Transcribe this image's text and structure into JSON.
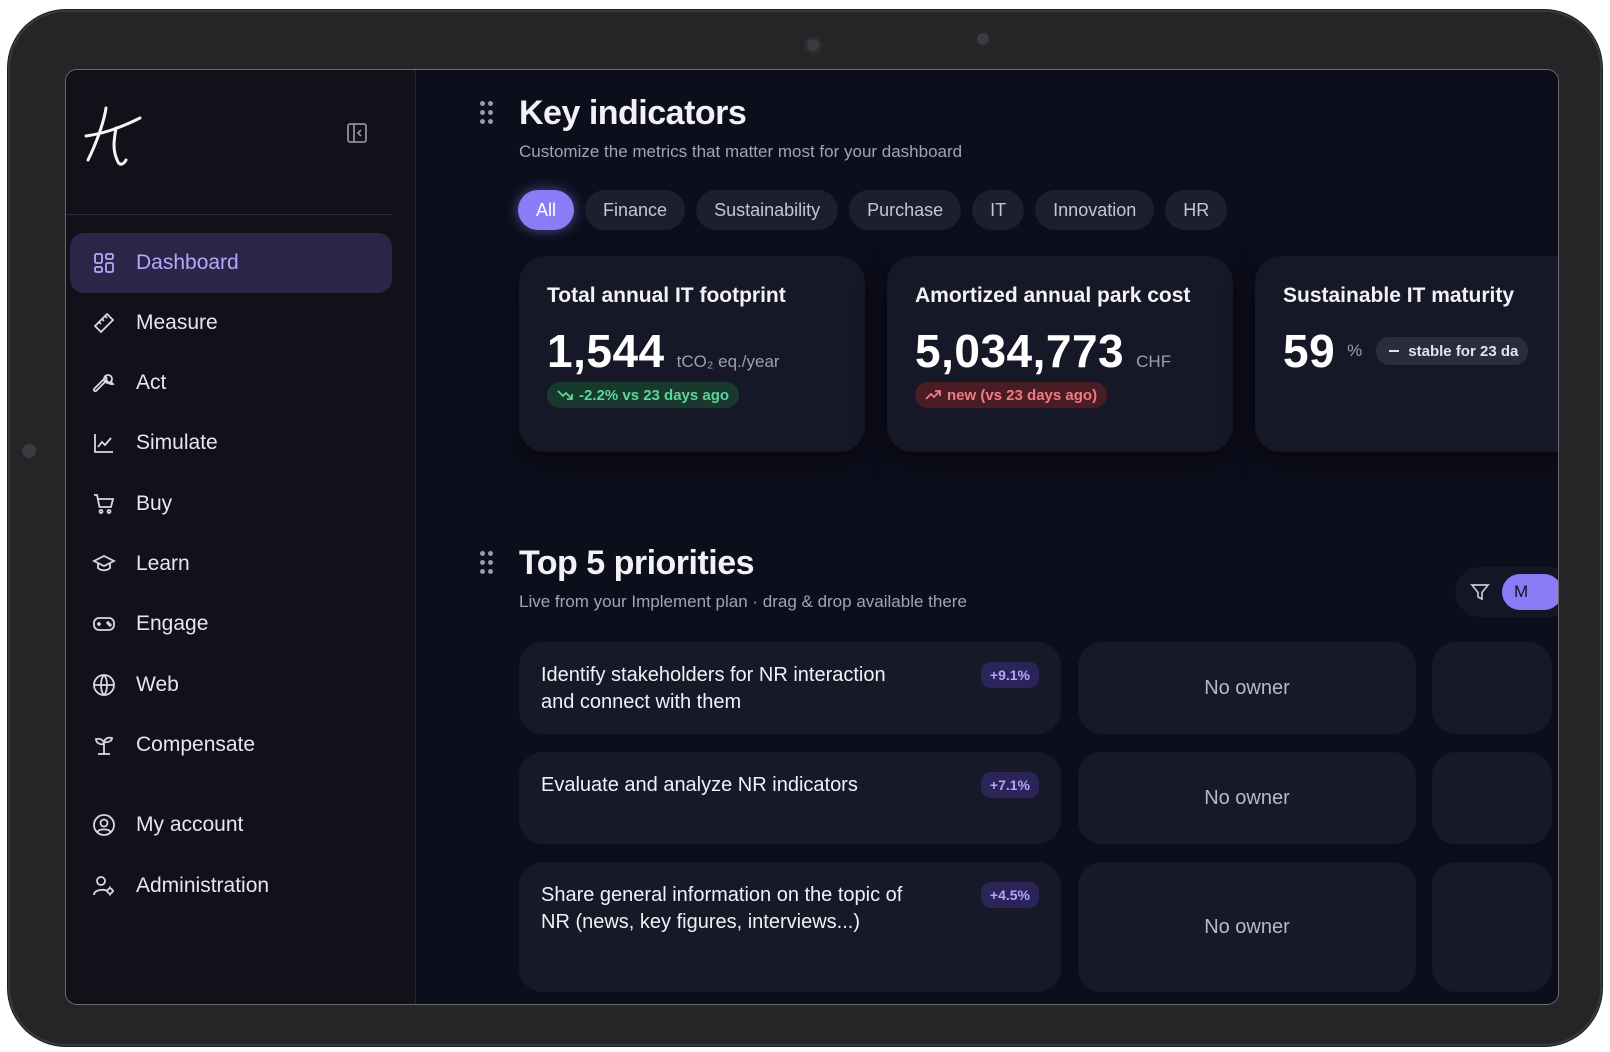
{
  "sidebar": {
    "logo_icon": "brand-glyph-icon",
    "collapse_icon": "sidebar-collapse-icon",
    "items": [
      {
        "label": "Dashboard",
        "icon": "dashboard-grid-icon",
        "active": true
      },
      {
        "label": "Measure",
        "icon": "ruler-icon"
      },
      {
        "label": "Act",
        "icon": "wrench-icon"
      },
      {
        "label": "Simulate",
        "icon": "line-chart-icon"
      },
      {
        "label": "Buy",
        "icon": "cart-icon"
      },
      {
        "label": "Learn",
        "icon": "graduation-cap-icon"
      },
      {
        "label": "Engage",
        "icon": "gamepad-icon"
      },
      {
        "label": "Web",
        "icon": "globe-icon"
      },
      {
        "label": "Compensate",
        "icon": "sprout-icon"
      },
      {
        "label": "My account",
        "icon": "user-circle-icon"
      },
      {
        "label": "Administration",
        "icon": "user-gear-icon"
      }
    ]
  },
  "key_indicators": {
    "title": "Key indicators",
    "subtitle": "Customize the metrics that matter most for your dashboard",
    "filters": [
      "All",
      "Finance",
      "Sustainability",
      "Purchase",
      "IT",
      "Innovation",
      "HR"
    ],
    "active_filter": "All",
    "cards": [
      {
        "title": "Total annual IT footprint",
        "value": "1,544",
        "unit": "tCO₂ eq./year",
        "badge": "-2.2% vs 23 days ago",
        "badge_icon": "trend-down-icon",
        "badge_color": "#5fd39b"
      },
      {
        "title": "Amortized annual park cost",
        "value": "5,034,773",
        "unit": "CHF",
        "badge": "new (vs 23 days ago)",
        "badge_icon": "trend-up-icon",
        "badge_color": "#f07a84"
      },
      {
        "title": "Sustainable IT maturity",
        "value": "59",
        "unit": "%",
        "badge": "stable for 23 da",
        "badge_icon": "minus-icon",
        "badge_color": "#e4e4ee"
      }
    ]
  },
  "priorities": {
    "title": "Top 5 priorities",
    "subtitle": "Live from your Implement plan · drag & drop available there",
    "filter_icon": "filter-icon",
    "filter_pill": "M",
    "items": [
      {
        "text": "Identify stakeholders for NR interaction and connect with them",
        "badge": "+9.1%",
        "owner": "No owner"
      },
      {
        "text": "Evaluate and analyze NR indicators",
        "badge": "+7.1%",
        "owner": "No owner"
      },
      {
        "text": "Share general information on the topic of NR (news, key figures, interviews...)",
        "badge": "+4.5%",
        "owner": "No owner"
      }
    ]
  },
  "colors": {
    "accent": "#8b7bf6",
    "active_nav_bg": "#2d2547",
    "active_nav_text": "#b7a6ff",
    "background": "#0d0e1c"
  }
}
